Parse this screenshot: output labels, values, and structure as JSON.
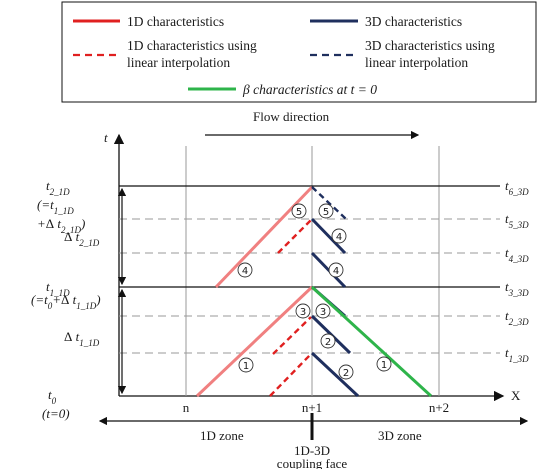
{
  "legend": {
    "items": [
      {
        "label": "1D characteristics",
        "style": "solid",
        "color": "#e02020"
      },
      {
        "label": "3D characteristics",
        "style": "solid",
        "color": "#1f2f5e"
      },
      {
        "label_line1": "1D characteristics using",
        "label_line2": "linear interpolation",
        "style": "dashed",
        "color": "#e02020"
      },
      {
        "label_line1": "3D characteristics using",
        "label_line2": "linear interpolation",
        "style": "dashed",
        "color": "#1f2f5e"
      }
    ],
    "beta": {
      "label": "β characteristics at t = 0",
      "color": "#2eb44a"
    }
  },
  "axes": {
    "y_label": "t",
    "x_label": "X",
    "flow_direction": "Flow direction",
    "nodes": [
      "n",
      "n+1",
      "n+2"
    ]
  },
  "left_labels": {
    "t2_1d": "t2_1D",
    "t2_eq_line1": "(=t1_1D",
    "t2_eq_line2": "+Δ t2_1D)",
    "dt2": "Δ t2_1D",
    "t1_1d": "t1_1D",
    "t1_eq": "(=t0+Δ t1_1D)",
    "dt1": "Δ t1_1D",
    "t0": "t0",
    "t0_eq": "(t=0)"
  },
  "right_labels": [
    "t6_3D",
    "t5_3D",
    "t4_3D",
    "t3_3D",
    "t2_3D",
    "t1_3D"
  ],
  "circled_numbers": [
    "①",
    "②",
    "③",
    "④",
    "⑤"
  ],
  "zones": {
    "left": "1D zone",
    "right": "3D zone",
    "coupling_line1": "1D-3D",
    "coupling_line2": "coupling face"
  },
  "colors": {
    "red_solid": "#f08080",
    "red_dashed": "#e02020",
    "navy": "#1f2f5e",
    "green": "#2eb44a",
    "grid": "#9a9a9a",
    "black": "#111111"
  }
}
